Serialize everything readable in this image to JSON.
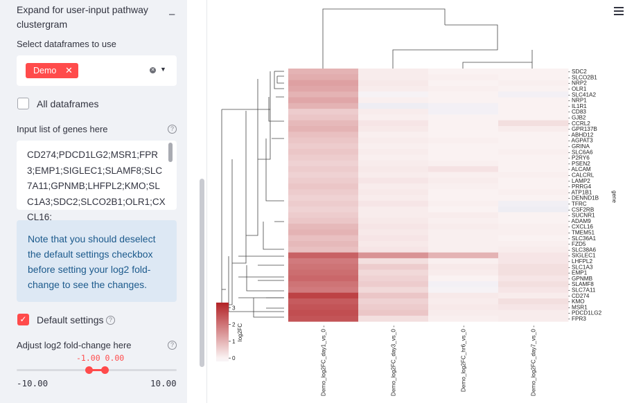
{
  "sidebar": {
    "expander": {
      "title": "Expand for user-input pathway clustergram",
      "toggle": "–"
    },
    "dataframes": {
      "label": "Select dataframes to use",
      "selected_tag": "Demo",
      "tag_remove": "✕",
      "clear": "✕",
      "caret": "▼"
    },
    "all_dataframes": {
      "label": "All dataframes",
      "checked": false
    },
    "genes_input": {
      "label": "Input list of genes here",
      "value": "CD274;PDCD1LG2;MSR1;FPR3;EMP1;SIGLEC1;SLAMF8;SLC7A11;GPNMB;LHFPL2;KMO;SLC1A3;SDC2;SLCO2B1;OLR1;CXCL16;"
    },
    "note": "Note that you should deselect the default settings checkbox before setting your log2 fold-change to see the changes.",
    "default_settings": {
      "label": "Default settings",
      "checked": true
    },
    "fold_change": {
      "label": "Adjust log2 fold-change here",
      "value_display": "-1.00 0.00",
      "min_label": "-10.00",
      "max_label": "10.00",
      "low": -1.0,
      "high": 0.0,
      "min": -10.0,
      "max": 10.0
    }
  },
  "help_icon": "?",
  "check_mark": "✓",
  "chart_data": {
    "type": "heatmap",
    "title": "",
    "columns": [
      "Demo_log2FC_day1_vs_0",
      "Demo_log2FC_day3_vs_0",
      "Demo_log2FC_hr6_vs_0",
      "Demo_log2FC_day7_vs_0"
    ],
    "rows": [
      "SDC2",
      "SLCO2B1",
      "NRP2",
      "OLR1",
      "SLC41A2",
      "NRP1",
      "IL1R1",
      "CD83",
      "GJB2",
      "CCRL2",
      "GPR137B",
      "ABHD12",
      "AGPAT3",
      "GRINA",
      "SLC6A6",
      "P2RY6",
      "PSEN2",
      "ALCAM",
      "CALCRL",
      "LAMP2",
      "PRRG4",
      "ATP1B1",
      "DENND1B",
      "TFRC",
      "CSF2RB",
      "SUCNR1",
      "ADAM9",
      "CXCL16",
      "TMEM51",
      "SLC36A1",
      "FZD5",
      "SLC38A6",
      "SIGLEC1",
      "LHFPL2",
      "SLC1A3",
      "EMP1",
      "GPNMB",
      "SLAMF8",
      "SLC7A11",
      "CD274",
      "KMO",
      "MSR1",
      "PDCD1LG2",
      "FPR3"
    ],
    "values": [
      [
        1.0,
        0.1,
        0.0,
        0.0
      ],
      [
        1.1,
        0.1,
        0.05,
        0.0
      ],
      [
        1.3,
        0.15,
        0.0,
        0.05
      ],
      [
        1.2,
        0.1,
        0.05,
        0.0
      ],
      [
        1.0,
        -0.05,
        0.0,
        -0.1
      ],
      [
        1.2,
        0.05,
        0.0,
        0.0
      ],
      [
        1.0,
        -0.2,
        -0.1,
        0.0
      ],
      [
        0.6,
        0.1,
        -0.1,
        0.0
      ],
      [
        0.7,
        0.05,
        0.0,
        0.0
      ],
      [
        0.9,
        0.2,
        0.0,
        0.3
      ],
      [
        1.0,
        0.15,
        0.0,
        0.1
      ],
      [
        0.8,
        0.05,
        0.0,
        0.0
      ],
      [
        0.7,
        0.1,
        0.05,
        0.0
      ],
      [
        0.6,
        0.05,
        0.0,
        0.0
      ],
      [
        0.7,
        0.1,
        0.0,
        0.05
      ],
      [
        0.6,
        0.05,
        0.0,
        0.0
      ],
      [
        0.5,
        0.1,
        0.05,
        0.0
      ],
      [
        0.6,
        0.15,
        0.25,
        0.0
      ],
      [
        0.5,
        0.1,
        0.05,
        0.05
      ],
      [
        0.6,
        0.2,
        0.1,
        0.0
      ],
      [
        0.7,
        0.1,
        0.05,
        0.0
      ],
      [
        0.6,
        0.15,
        0.0,
        0.05
      ],
      [
        0.5,
        0.1,
        0.0,
        0.0
      ],
      [
        0.6,
        0.2,
        0.05,
        -0.15
      ],
      [
        0.5,
        0.1,
        0.0,
        -0.2
      ],
      [
        0.6,
        0.1,
        0.1,
        0.0
      ],
      [
        0.7,
        0.15,
        0.05,
        0.0
      ],
      [
        0.9,
        0.2,
        0.1,
        0.05
      ],
      [
        1.0,
        0.15,
        0.05,
        0.05
      ],
      [
        0.8,
        0.2,
        0.05,
        0.0
      ],
      [
        0.9,
        0.15,
        0.05,
        0.05
      ],
      [
        0.8,
        0.2,
        0.05,
        0.1
      ],
      [
        2.3,
        1.5,
        1.0,
        0.2
      ],
      [
        1.9,
        0.3,
        0.05,
        0.2
      ],
      [
        2.0,
        0.6,
        0.15,
        0.3
      ],
      [
        2.1,
        0.4,
        0.1,
        0.3
      ],
      [
        2.2,
        0.5,
        0.0,
        0.2
      ],
      [
        2.0,
        0.6,
        -0.1,
        0.3
      ],
      [
        1.9,
        0.4,
        -0.05,
        0.2
      ],
      [
        2.8,
        0.7,
        0.15,
        0.1
      ],
      [
        2.4,
        0.5,
        0.1,
        0.3
      ],
      [
        2.5,
        0.6,
        0.15,
        0.2
      ],
      [
        2.6,
        0.7,
        0.1,
        0.1
      ],
      [
        2.5,
        0.3,
        0.05,
        0.1
      ]
    ],
    "colorbar": {
      "label": "log2FC",
      "ticks": [
        3,
        2,
        1,
        0
      ],
      "vmin": -0.2,
      "vmax": 3.3
    },
    "y_axis_label": "gene"
  },
  "menu_icon": "hamburger-menu-icon"
}
